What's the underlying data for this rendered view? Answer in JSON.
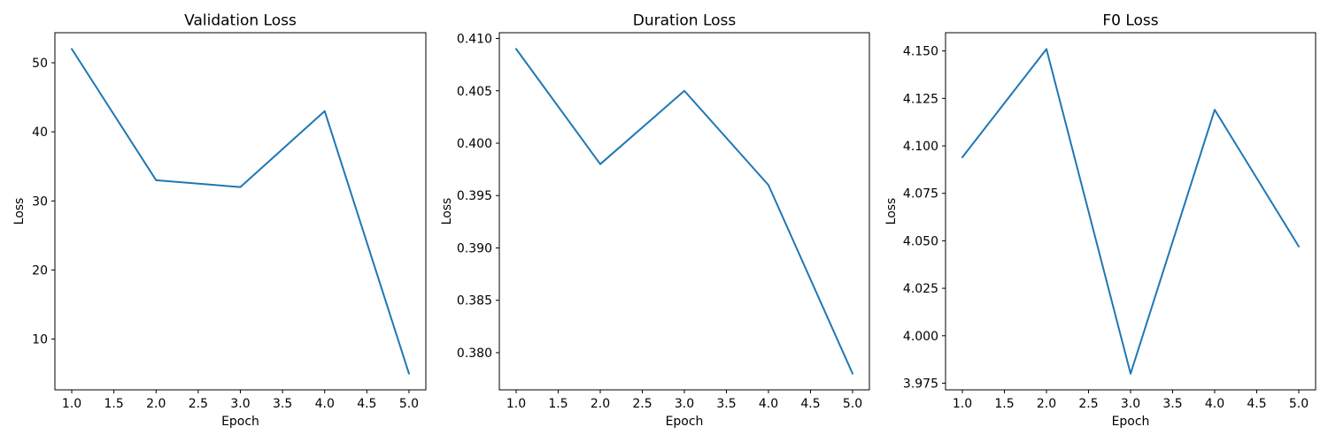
{
  "figure": {
    "background": "#ffffff",
    "text_color": "#000000",
    "spine_color": "#000000"
  },
  "chart_data": [
    {
      "type": "line",
      "title": "Validation Loss",
      "xlabel": "Epoch",
      "ylabel": "Loss",
      "line_color": "#1f77b4",
      "grid": false,
      "legend": null,
      "x": [
        1,
        2,
        3,
        4,
        5
      ],
      "values": [
        52,
        33,
        32,
        43,
        5
      ],
      "xlim": [
        0.8,
        5.2
      ],
      "ylim": [
        2.65,
        54.35
      ],
      "xticks": [
        1.0,
        1.5,
        2.0,
        2.5,
        3.0,
        3.5,
        4.0,
        4.5,
        5.0
      ],
      "xtick_labels": [
        "1.0",
        "1.5",
        "2.0",
        "2.5",
        "3.0",
        "3.5",
        "4.0",
        "4.5",
        "5.0"
      ],
      "yticks": [
        10,
        20,
        30,
        40,
        50
      ],
      "ytick_labels": [
        "10",
        "20",
        "30",
        "40",
        "50"
      ]
    },
    {
      "type": "line",
      "title": "Duration Loss",
      "xlabel": "Epoch",
      "ylabel": "Loss",
      "line_color": "#1f77b4",
      "grid": false,
      "legend": null,
      "x": [
        1,
        2,
        3,
        4,
        5
      ],
      "values": [
        0.409,
        0.398,
        0.405,
        0.396,
        0.378
      ],
      "xlim": [
        0.8,
        5.2
      ],
      "ylim": [
        0.37645,
        0.41055
      ],
      "xticks": [
        1.0,
        1.5,
        2.0,
        2.5,
        3.0,
        3.5,
        4.0,
        4.5,
        5.0
      ],
      "xtick_labels": [
        "1.0",
        "1.5",
        "2.0",
        "2.5",
        "3.0",
        "3.5",
        "4.0",
        "4.5",
        "5.0"
      ],
      "yticks": [
        0.38,
        0.385,
        0.39,
        0.395,
        0.4,
        0.405,
        0.41
      ],
      "ytick_labels": [
        "0.380",
        "0.385",
        "0.390",
        "0.395",
        "0.400",
        "0.405",
        "0.410"
      ]
    },
    {
      "type": "line",
      "title": "F0 Loss",
      "xlabel": "Epoch",
      "ylabel": "Loss",
      "line_color": "#1f77b4",
      "grid": false,
      "legend": null,
      "x": [
        1,
        2,
        3,
        4,
        5
      ],
      "values": [
        4.094,
        4.151,
        3.98,
        4.119,
        4.047
      ],
      "xlim": [
        0.8,
        5.2
      ],
      "ylim": [
        3.9715,
        4.1596
      ],
      "xticks": [
        1.0,
        1.5,
        2.0,
        2.5,
        3.0,
        3.5,
        4.0,
        4.5,
        5.0
      ],
      "xtick_labels": [
        "1.0",
        "1.5",
        "2.0",
        "2.5",
        "3.0",
        "3.5",
        "4.0",
        "4.5",
        "5.0"
      ],
      "yticks": [
        3.975,
        4.0,
        4.025,
        4.05,
        4.075,
        4.1,
        4.125,
        4.15
      ],
      "ytick_labels": [
        "3.975",
        "4.000",
        "4.025",
        "4.050",
        "4.075",
        "4.100",
        "4.125",
        "4.150"
      ]
    }
  ]
}
